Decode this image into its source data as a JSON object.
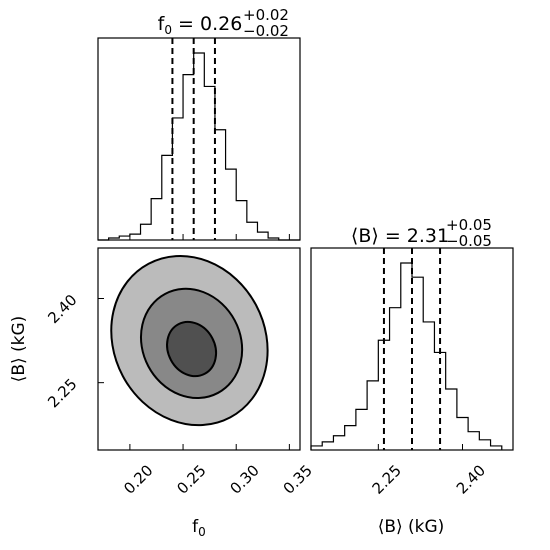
{
  "chart_data": [
    {
      "type": "histogram",
      "parameter": "f_0",
      "title": {
        "prefix": "f",
        "sub": "0",
        "eq": " = 0.26",
        "sup": "+0.02",
        "low": "−0.02"
      },
      "xlim": [
        0.17,
        0.36
      ],
      "bin_edges": [
        0.17,
        0.18,
        0.19,
        0.2,
        0.21,
        0.22,
        0.23,
        0.24,
        0.25,
        0.26,
        0.27,
        0.28,
        0.29,
        0.3,
        0.31,
        0.32,
        0.33,
        0.34,
        0.35,
        0.36
      ],
      "counts": [
        0,
        1,
        2,
        3,
        8,
        21,
        43,
        62,
        84,
        95,
        78,
        56,
        36,
        20,
        9,
        4,
        1,
        0,
        0
      ],
      "quantiles": [
        0.24,
        0.26,
        0.28
      ],
      "xticks": [
        "0.20",
        "0.25",
        "0.30",
        "0.35"
      ],
      "xtick_values": [
        0.2,
        0.25,
        0.3,
        0.35
      ]
    },
    {
      "type": "histogram",
      "parameter": "<B>",
      "title": {
        "prefix": "⟨B⟩",
        "sub": "",
        "eq": " = 2.31",
        "sup": "+0.05",
        "low": "−0.05"
      },
      "xlim": [
        2.13,
        2.49
      ],
      "bin_edges": [
        2.13,
        2.15,
        2.17,
        2.19,
        2.21,
        2.23,
        2.25,
        2.27,
        2.29,
        2.31,
        2.33,
        2.35,
        2.37,
        2.39,
        2.41,
        2.43,
        2.45,
        2.47
      ],
      "counts": [
        2,
        4,
        7,
        12,
        20,
        34,
        54,
        70,
        92,
        85,
        63,
        48,
        30,
        16,
        9,
        5,
        2
      ],
      "quantiles": [
        2.26,
        2.31,
        2.36
      ],
      "xticks": [
        "2.25",
        "2.40"
      ],
      "xtick_values": [
        2.25,
        2.4
      ],
      "xlabel": "⟨B⟩ (kG)"
    },
    {
      "type": "contour",
      "x_parameter": "f_0",
      "y_parameter": "<B>",
      "xlim": [
        0.17,
        0.36
      ],
      "ylim": [
        2.13,
        2.49
      ],
      "xlabel_main": "f",
      "xlabel_sub": "0",
      "ylabel": "⟨B⟩ (kG)",
      "xticks": [
        "0.20",
        "0.25",
        "0.30",
        "0.35"
      ],
      "xtick_values": [
        0.2,
        0.25,
        0.3,
        0.35
      ],
      "yticks": [
        "2.25",
        "2.40"
      ],
      "ytick_values": [
        2.25,
        2.4
      ],
      "levels": [
        {
          "name": "outer",
          "fill": "#bbbbbb",
          "center": [
            0.256,
            2.325
          ],
          "rx": 0.071,
          "ry": 0.155,
          "angle": -28
        },
        {
          "name": "middle",
          "fill": "#888888",
          "center": [
            0.258,
            2.32
          ],
          "rx": 0.046,
          "ry": 0.1,
          "angle": -28
        },
        {
          "name": "inner",
          "fill": "#505050",
          "center": [
            0.258,
            2.31
          ],
          "rx": 0.022,
          "ry": 0.05,
          "angle": -28
        }
      ]
    }
  ]
}
